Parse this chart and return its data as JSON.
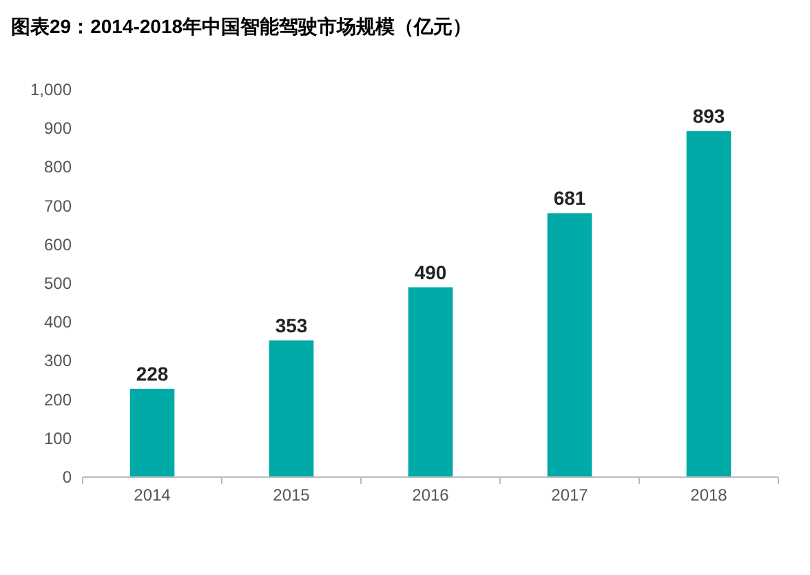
{
  "chart_data": {
    "type": "bar",
    "title": "图表29：2014-2018年中国智能驾驶市场规模（亿元）",
    "categories": [
      "2014",
      "2015",
      "2016",
      "2017",
      "2018"
    ],
    "values": [
      228,
      353,
      490,
      681,
      893
    ],
    "color": "#00aaa6",
    "ylim": [
      0,
      1000
    ],
    "yticks": [
      0,
      100,
      200,
      300,
      400,
      500,
      600,
      700,
      800,
      900,
      {
        "value": 1000,
        "label": "1,000"
      }
    ],
    "grid": false,
    "data_labels": true
  }
}
